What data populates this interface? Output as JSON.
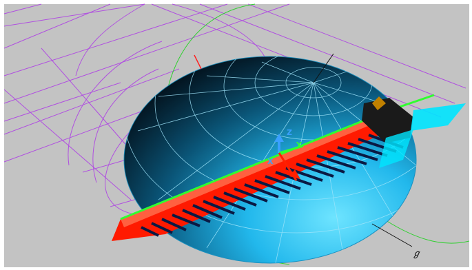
{
  "scene": {
    "description_colors": {
      "background": "#c3c3c3",
      "globe_light": "#2fc8f5",
      "globe_dark": "#062a3e",
      "grid_lines": "#8fdcf6",
      "wireframe": "#b050e0",
      "orbit": "#30d030",
      "panel_red": "#ff1a00",
      "panel_dark": "#0a1a44",
      "axis_x": "#ff2000",
      "axis_y": "#30ff30",
      "axis_z": "#3aa0ff"
    },
    "axes": {
      "x_label": "X",
      "y_label": "Y",
      "z_label": "Z"
    },
    "annotation": {
      "label": "ℊ"
    }
  }
}
